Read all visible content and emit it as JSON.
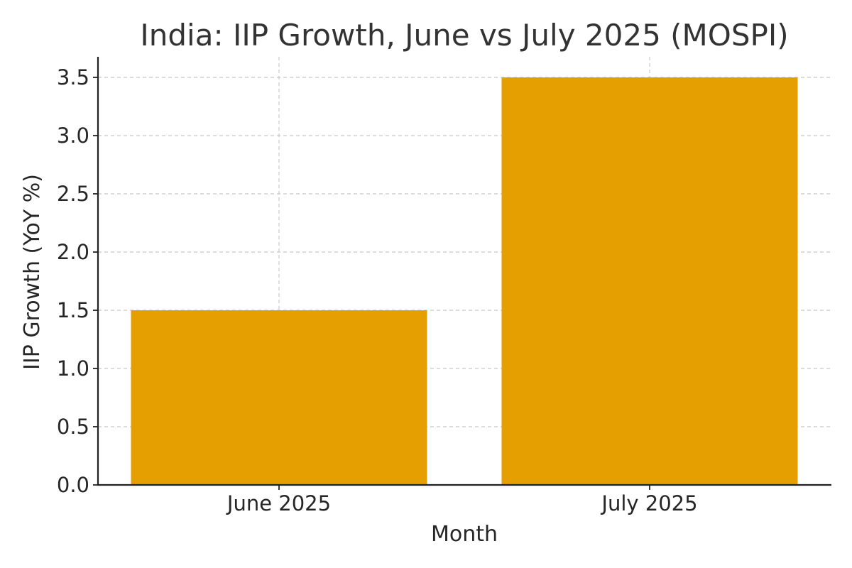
{
  "chart_data": {
    "type": "bar",
    "title": "India: IIP Growth, June vs July 2025 (MOSPI)",
    "xlabel": "Month",
    "ylabel": "IIP Growth (YoY %)",
    "categories": [
      "June 2025",
      "July 2025"
    ],
    "values": [
      1.5,
      3.5
    ],
    "ylim": [
      0,
      3.5
    ],
    "yticks": [
      "0.0",
      "0.5",
      "1.0",
      "1.5",
      "2.0",
      "2.5",
      "3.0",
      "3.5"
    ],
    "grid": true,
    "colors": {
      "bar": "#E69F00"
    }
  }
}
